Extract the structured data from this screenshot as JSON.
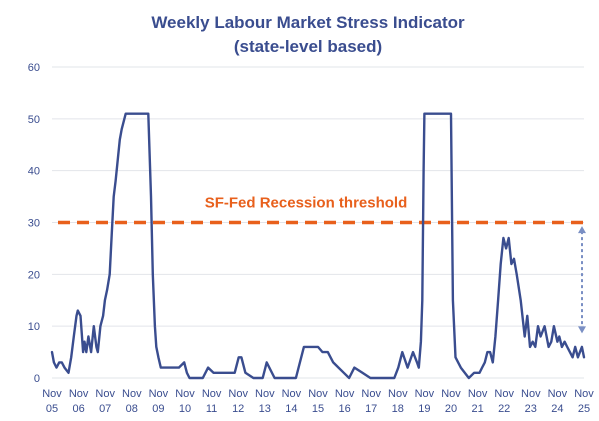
{
  "chart_data": {
    "type": "line",
    "title": "Weekly Labour Market Stress Indicator",
    "subtitle": "(state-level based)",
    "xlabel": "",
    "ylabel": "",
    "ylim": [
      0,
      60
    ],
    "yticks": [
      0,
      10,
      20,
      30,
      40,
      50,
      60
    ],
    "xticks": [
      {
        "month": "Nov",
        "year": "05"
      },
      {
        "month": "Nov",
        "year": "06"
      },
      {
        "month": "Nov",
        "year": "07"
      },
      {
        "month": "Nov",
        "year": "08"
      },
      {
        "month": "Nov",
        "year": "09"
      },
      {
        "month": "Nov",
        "year": "10"
      },
      {
        "month": "Nov",
        "year": "11"
      },
      {
        "month": "Nov",
        "year": "12"
      },
      {
        "month": "Nov",
        "year": "13"
      },
      {
        "month": "Nov",
        "year": "14"
      },
      {
        "month": "Nov",
        "year": "15"
      },
      {
        "month": "Nov",
        "year": "16"
      },
      {
        "month": "Nov",
        "year": "17"
      },
      {
        "month": "Nov",
        "year": "18"
      },
      {
        "month": "Nov",
        "year": "19"
      },
      {
        "month": "Nov",
        "year": "20"
      },
      {
        "month": "Nov",
        "year": "21"
      },
      {
        "month": "Nov",
        "year": "22"
      },
      {
        "month": "Nov",
        "year": "23"
      },
      {
        "month": "Nov",
        "year": "24"
      },
      {
        "month": "Nov",
        "year": "25"
      }
    ],
    "grid": "horizontal",
    "legend": "none",
    "threshold": {
      "value": 30,
      "label": "SF-Fed Recession threshold",
      "color": "#e8601c",
      "style": "dashed"
    },
    "colors": {
      "series": "#3a4d8f",
      "threshold": "#e8601c",
      "gap_arrow": "#7a8fc4",
      "text": "#3a4d8f"
    },
    "series": [
      {
        "color": "#3a4d8f",
        "x": [
          2005.83,
          2005.9,
          2006.0,
          2006.1,
          2006.2,
          2006.3,
          2006.45,
          2006.55,
          2006.65,
          2006.75,
          2006.8,
          2006.9,
          2007.0,
          2007.05,
          2007.12,
          2007.2,
          2007.3,
          2007.4,
          2007.5,
          2007.55,
          2007.65,
          2007.75,
          2007.82,
          2007.9,
          2008.0,
          2008.08,
          2008.15,
          2008.22,
          2008.3,
          2008.38,
          2008.45,
          2008.6,
          2008.83,
          2009.1,
          2009.3,
          2009.45,
          2009.55,
          2009.62,
          2009.7,
          2009.75,
          2009.83,
          2009.92,
          2010.1,
          2010.4,
          2010.6,
          2010.8,
          2010.9,
          2011.0,
          2011.3,
          2011.5,
          2011.7,
          2011.9,
          2012.2,
          2012.5,
          2012.7,
          2012.85,
          2012.95,
          2013.1,
          2013.4,
          2013.6,
          2013.75,
          2013.9,
          2014.2,
          2014.5,
          2014.8,
          2015.0,
          2015.3,
          2015.6,
          2015.83,
          2016.0,
          2016.2,
          2016.4,
          2016.6,
          2016.8,
          2017.0,
          2017.2,
          2017.5,
          2017.8,
          2018.0,
          2018.3,
          2018.5,
          2018.7,
          2018.85,
          2019.0,
          2019.2,
          2019.4,
          2019.55,
          2019.62,
          2019.7,
          2019.75,
          2019.8,
          2019.83,
          2019.87,
          2019.92,
          2020.2,
          2020.5,
          2020.83,
          2020.9,
          2021.0,
          2021.2,
          2021.5,
          2021.7,
          2021.9,
          2022.0,
          2022.1,
          2022.2,
          2022.3,
          2022.4,
          2022.5,
          2022.6,
          2022.7,
          2022.8,
          2022.9,
          2023.0,
          2023.1,
          2023.2,
          2023.3,
          2023.45,
          2023.6,
          2023.7,
          2023.8,
          2023.9,
          2024.0,
          2024.1,
          2024.2,
          2024.35,
          2024.5,
          2024.6,
          2024.7,
          2024.83,
          2024.9,
          2025.0,
          2025.1,
          2025.2,
          2025.3,
          2025.4,
          2025.5,
          2025.6,
          2025.75,
          2025.83
        ],
        "y": [
          5,
          3,
          2,
          3,
          3,
          2,
          1,
          4,
          8,
          12,
          13,
          12,
          5,
          7,
          5,
          8,
          5,
          10,
          6,
          5,
          10,
          12,
          15,
          17,
          20,
          28,
          35,
          38,
          42,
          46,
          48,
          51,
          51,
          51,
          51,
          51,
          35,
          20,
          10,
          6,
          4,
          2,
          2,
          2,
          2,
          3,
          1,
          0,
          0,
          0,
          2,
          1,
          1,
          1,
          1,
          4,
          4,
          1,
          0,
          0,
          0,
          3,
          0,
          0,
          0,
          0,
          6,
          6,
          6,
          5,
          5,
          3,
          2,
          1,
          0,
          2,
          1,
          0,
          0,
          0,
          0,
          0,
          2,
          5,
          2,
          5,
          3,
          2,
          7,
          15,
          40,
          51,
          51,
          51,
          51,
          51,
          51,
          15,
          4,
          2,
          0,
          1,
          1,
          2,
          3,
          5,
          5,
          3,
          8,
          15,
          22,
          27,
          25,
          27,
          22,
          23,
          20,
          15,
          8,
          12,
          6,
          7,
          6,
          10,
          8,
          10,
          6,
          7,
          10,
          7,
          8,
          6,
          7,
          6,
          5,
          4,
          6,
          4,
          6,
          4
        ]
      }
    ]
  }
}
